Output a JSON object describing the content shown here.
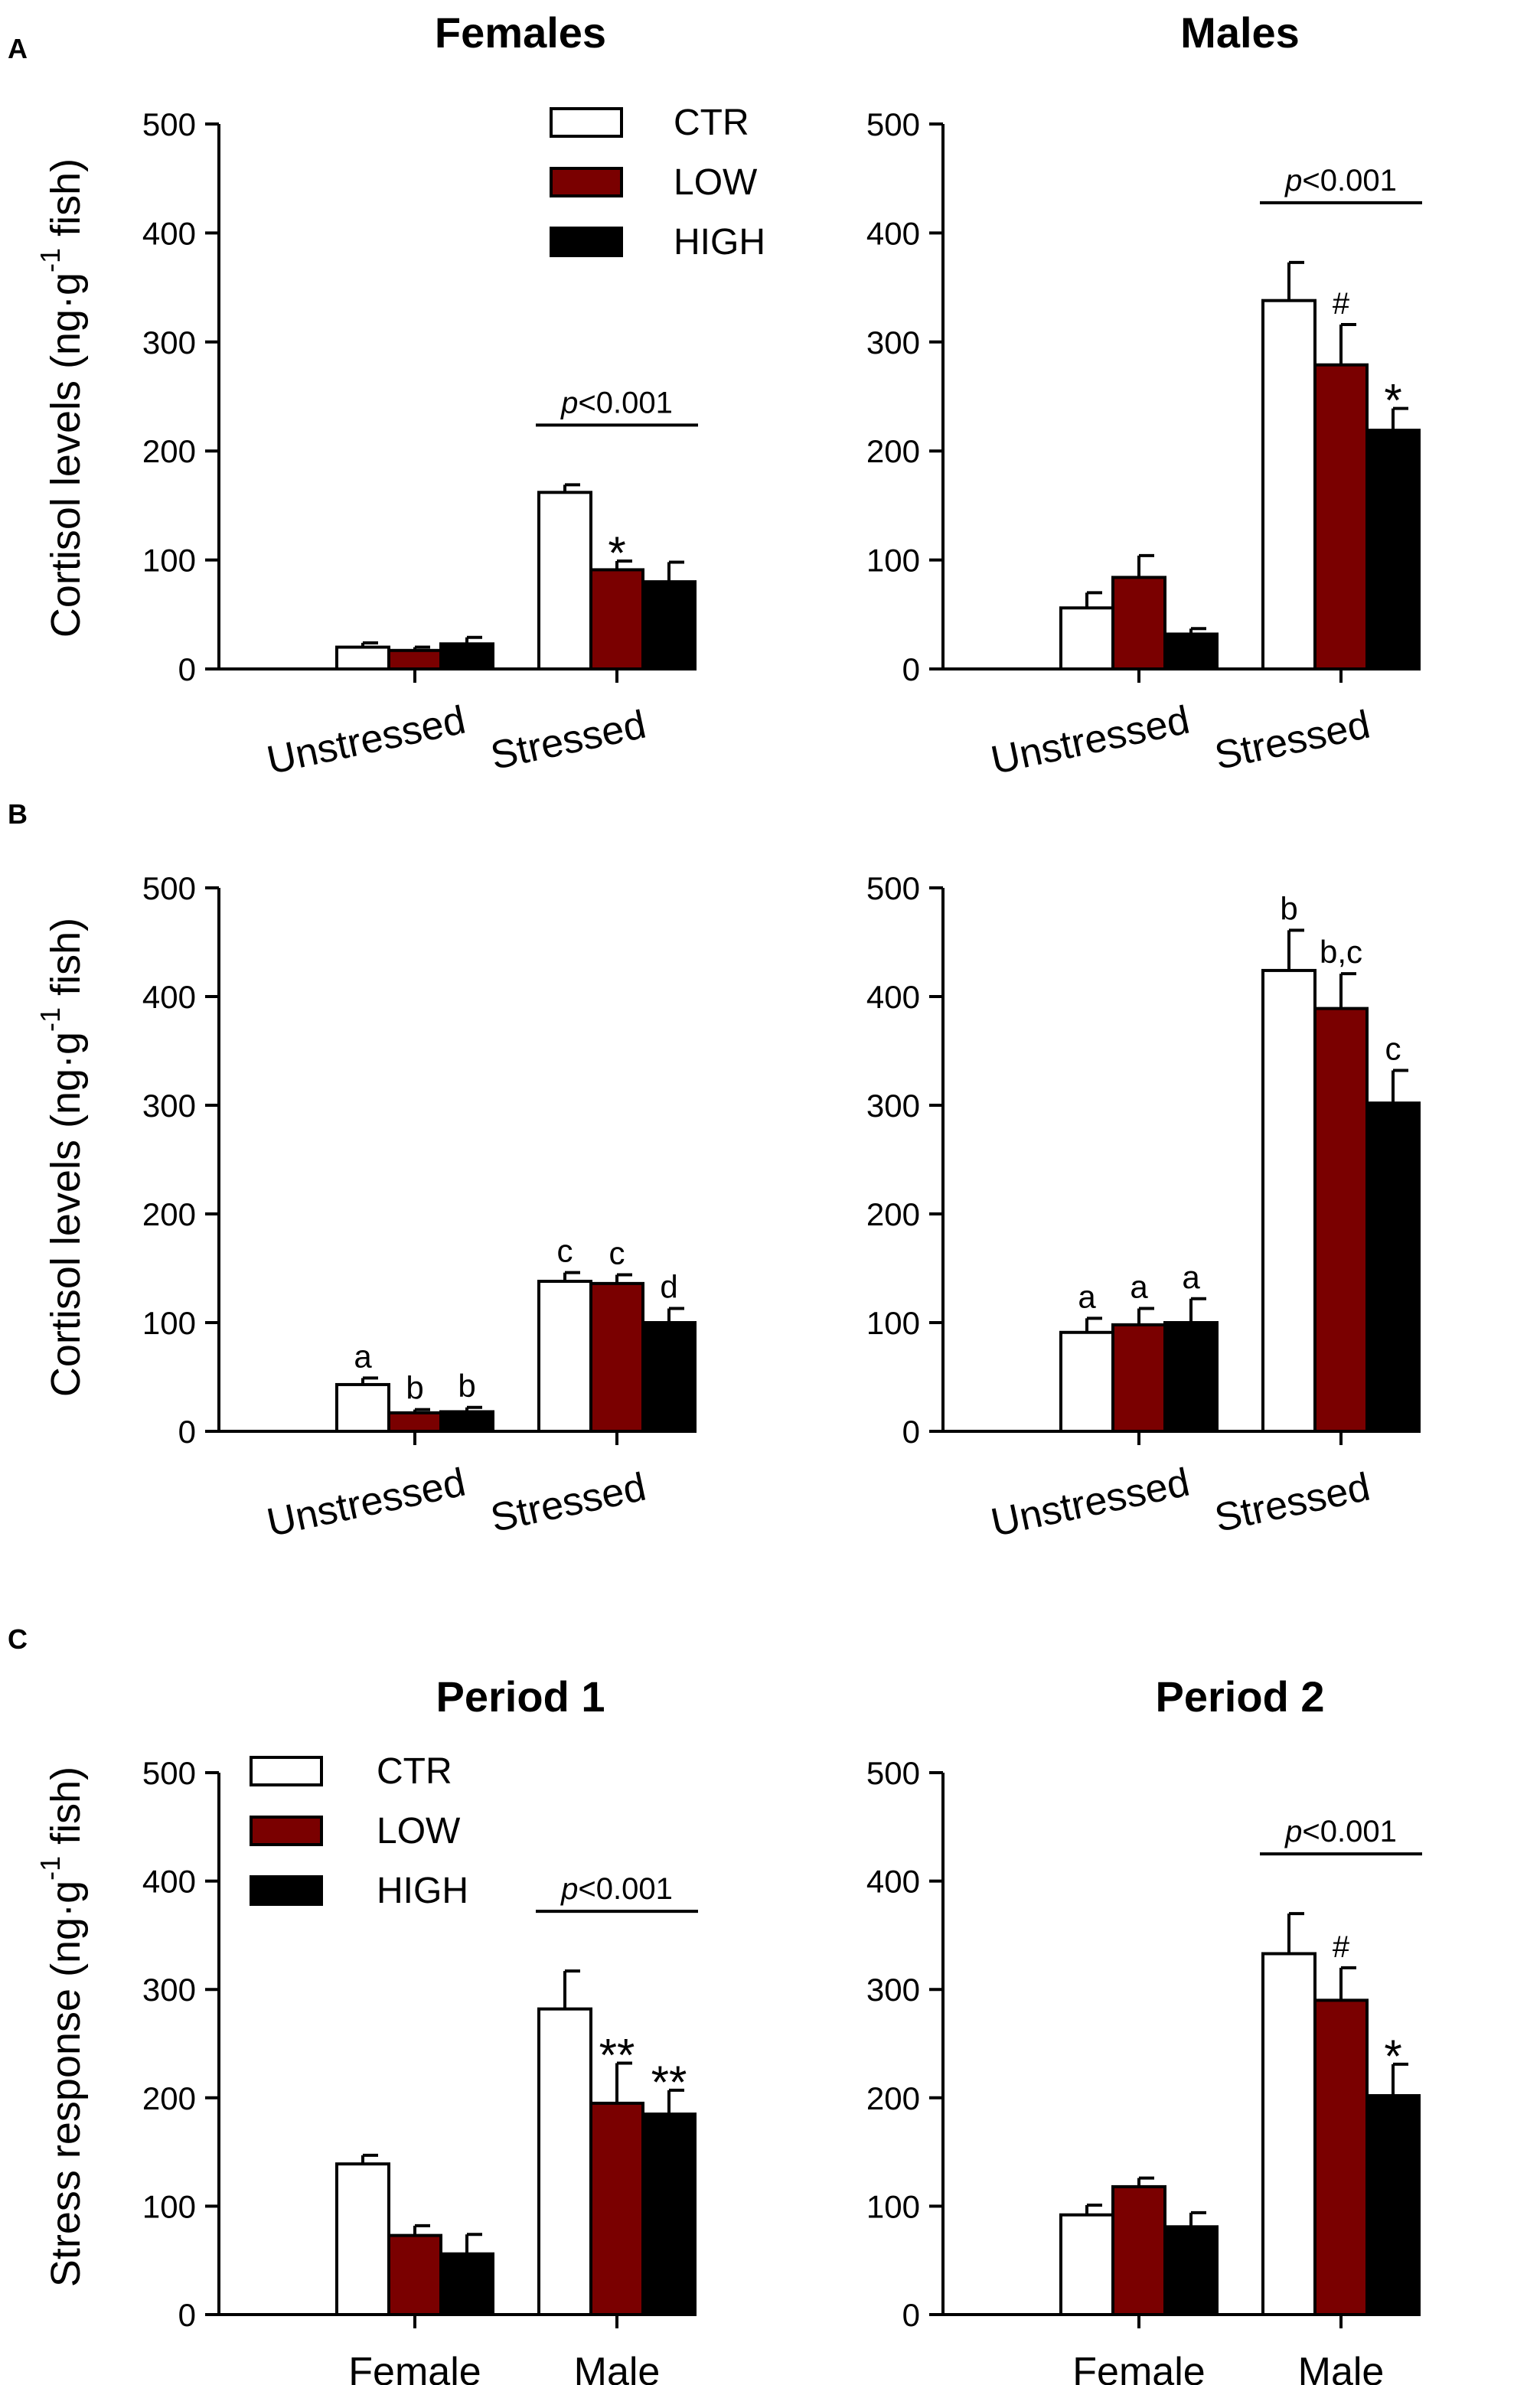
{
  "panel_labels": [
    "A",
    "B",
    "C"
  ],
  "column_titles": {
    "A_left": "Females",
    "A_right": "Males",
    "C_left": "Period 1",
    "C_right": "Period 2"
  },
  "ylabels": {
    "A": {
      "main": "Cortisol levels (ng·g",
      "sup": "-1",
      "end": " fish)"
    },
    "B": {
      "main": "Cortisol levels (ng·g",
      "sup": "-1",
      "end": " fish)"
    },
    "C": {
      "main": "Stress response (ng·g",
      "sup": "-1",
      "end": " fish)"
    }
  },
  "legend": {
    "entries": [
      {
        "label": "CTR",
        "color": "#ffffff"
      },
      {
        "label": "LOW",
        "color": "#7a0000"
      },
      {
        "label": "HIGH",
        "color": "#000000"
      }
    ]
  },
  "colors": {
    "CTR": "#ffffff",
    "LOW": "#7a0000",
    "HIGH": "#000000",
    "stroke": "#000000"
  },
  "chart_data": [
    {
      "id": "A_left",
      "type": "bar",
      "title": "Females",
      "panel": "A",
      "categories": [
        "Unstressed",
        "Stressed"
      ],
      "ylim": [
        0,
        500
      ],
      "yticks": [
        0,
        100,
        200,
        300,
        400,
        500
      ],
      "series": [
        {
          "name": "CTR",
          "values": [
            20,
            162
          ],
          "errors": [
            4,
            7
          ]
        },
        {
          "name": "LOW",
          "values": [
            17,
            91
          ],
          "errors": [
            3,
            8
          ]
        },
        {
          "name": "HIGH",
          "values": [
            23,
            80
          ],
          "errors": [
            6,
            18
          ]
        }
      ],
      "annotations": [
        {
          "cat": 1,
          "series": 1,
          "text": "*"
        }
      ],
      "pvalue": {
        "cat": 1,
        "prefix": "p",
        "text": "<0.001"
      }
    },
    {
      "id": "A_right",
      "type": "bar",
      "title": "Males",
      "panel": "A",
      "categories": [
        "Unstressed",
        "Stressed"
      ],
      "ylim": [
        0,
        500
      ],
      "yticks": [
        0,
        100,
        200,
        300,
        400,
        500
      ],
      "series": [
        {
          "name": "CTR",
          "values": [
            56,
            338
          ],
          "errors": [
            14,
            35
          ]
        },
        {
          "name": "LOW",
          "values": [
            84,
            279
          ],
          "errors": [
            20,
            37
          ]
        },
        {
          "name": "HIGH",
          "values": [
            32,
            219
          ],
          "errors": [
            5,
            20
          ]
        }
      ],
      "annotations": [
        {
          "cat": 1,
          "series": 1,
          "text": "#"
        },
        {
          "cat": 1,
          "series": 2,
          "text": "*"
        }
      ],
      "pvalue": {
        "cat": 1,
        "prefix": "p",
        "text": "<0.001"
      }
    },
    {
      "id": "B_left",
      "type": "bar",
      "panel": "B",
      "categories": [
        "Unstressed",
        "Stressed"
      ],
      "ylim": [
        0,
        500
      ],
      "yticks": [
        0,
        100,
        200,
        300,
        400,
        500
      ],
      "series": [
        {
          "name": "CTR",
          "values": [
            43,
            138
          ],
          "errors": [
            6,
            8
          ]
        },
        {
          "name": "LOW",
          "values": [
            17,
            136
          ],
          "errors": [
            3,
            8
          ]
        },
        {
          "name": "HIGH",
          "values": [
            18,
            100
          ],
          "errors": [
            4,
            13
          ]
        }
      ],
      "annotations": [
        {
          "cat": 0,
          "series": 0,
          "text": "a"
        },
        {
          "cat": 0,
          "series": 1,
          "text": "b"
        },
        {
          "cat": 0,
          "series": 2,
          "text": "b"
        },
        {
          "cat": 1,
          "series": 0,
          "text": "c"
        },
        {
          "cat": 1,
          "series": 1,
          "text": "c"
        },
        {
          "cat": 1,
          "series": 2,
          "text": "d"
        }
      ]
    },
    {
      "id": "B_right",
      "type": "bar",
      "panel": "B",
      "categories": [
        "Unstressed",
        "Stressed"
      ],
      "ylim": [
        0,
        500
      ],
      "yticks": [
        0,
        100,
        200,
        300,
        400,
        500
      ],
      "series": [
        {
          "name": "CTR",
          "values": [
            91,
            424
          ],
          "errors": [
            13,
            37
          ]
        },
        {
          "name": "LOW",
          "values": [
            98,
            389
          ],
          "errors": [
            15,
            32
          ]
        },
        {
          "name": "HIGH",
          "values": [
            100,
            302
          ],
          "errors": [
            22,
            30
          ]
        }
      ],
      "annotations": [
        {
          "cat": 0,
          "series": 0,
          "text": "a"
        },
        {
          "cat": 0,
          "series": 1,
          "text": "a"
        },
        {
          "cat": 0,
          "series": 2,
          "text": "a"
        },
        {
          "cat": 1,
          "series": 0,
          "text": "b"
        },
        {
          "cat": 1,
          "series": 1,
          "text": "b,c"
        },
        {
          "cat": 1,
          "series": 2,
          "text": "c"
        }
      ]
    },
    {
      "id": "C_left",
      "type": "bar",
      "title": "Period 1",
      "panel": "C",
      "categories": [
        "Female",
        "Male"
      ],
      "ylim": [
        0,
        500
      ],
      "yticks": [
        0,
        100,
        200,
        300,
        400,
        500
      ],
      "series": [
        {
          "name": "CTR",
          "values": [
            139,
            282
          ],
          "errors": [
            8,
            35
          ]
        },
        {
          "name": "LOW",
          "values": [
            73,
            195
          ],
          "errors": [
            9,
            37
          ]
        },
        {
          "name": "HIGH",
          "values": [
            56,
            185
          ],
          "errors": [
            18,
            22
          ]
        }
      ],
      "annotations": [
        {
          "cat": 1,
          "series": 1,
          "text": "**"
        },
        {
          "cat": 1,
          "series": 2,
          "text": "**"
        }
      ],
      "pvalue": {
        "cat": 1,
        "prefix": "p",
        "text": "<0.001"
      }
    },
    {
      "id": "C_right",
      "type": "bar",
      "title": "Period 2",
      "panel": "C",
      "categories": [
        "Female",
        "Male"
      ],
      "ylim": [
        0,
        500
      ],
      "yticks": [
        0,
        100,
        200,
        300,
        400,
        500
      ],
      "series": [
        {
          "name": "CTR",
          "values": [
            92,
            333
          ],
          "errors": [
            9,
            37
          ]
        },
        {
          "name": "LOW",
          "values": [
            118,
            290
          ],
          "errors": [
            8,
            30
          ]
        },
        {
          "name": "HIGH",
          "values": [
            81,
            202
          ],
          "errors": [
            13,
            29
          ]
        }
      ],
      "annotations": [
        {
          "cat": 1,
          "series": 1,
          "text": "#"
        },
        {
          "cat": 1,
          "series": 2,
          "text": "*"
        }
      ],
      "pvalue": {
        "cat": 1,
        "prefix": "p",
        "text": "<0.001"
      }
    }
  ]
}
